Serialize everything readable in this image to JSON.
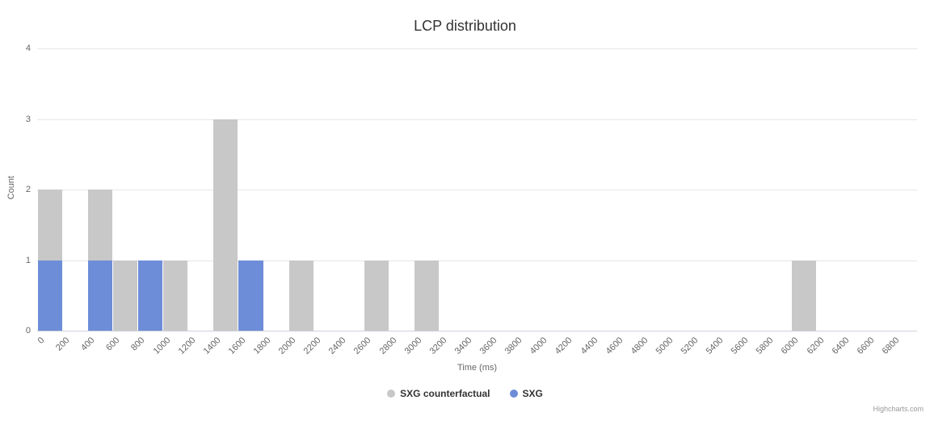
{
  "credit": "Highcharts.com",
  "chart_data": {
    "type": "bar",
    "title": "LCP distribution",
    "xlabel": "Time (ms)",
    "ylabel": "Count",
    "ylim": [
      0,
      4
    ],
    "yticks": [
      0,
      1,
      2,
      3,
      4
    ],
    "x_bin_size_ms": 200,
    "grid": true,
    "legend_position": "bottom",
    "categories": [
      "0",
      "200",
      "400",
      "600",
      "800",
      "1000",
      "1200",
      "1400",
      "1600",
      "1800",
      "2000",
      "2200",
      "2400",
      "2600",
      "2800",
      "3000",
      "3200",
      "3400",
      "3600",
      "3800",
      "4000",
      "4200",
      "4400",
      "4600",
      "4800",
      "5000",
      "5200",
      "5400",
      "5600",
      "5800",
      "6000",
      "6200",
      "6400",
      "6600",
      "6800"
    ],
    "series": [
      {
        "name": "SXG counterfactual",
        "color": "#c8c8c8",
        "values": [
          2,
          0,
          2,
          1,
          0,
          1,
          0,
          3,
          0,
          0,
          1,
          0,
          0,
          1,
          0,
          1,
          0,
          0,
          0,
          0,
          0,
          0,
          0,
          0,
          0,
          0,
          0,
          0,
          0,
          0,
          1,
          0,
          0,
          0,
          0
        ]
      },
      {
        "name": "SXG",
        "color": "#6e8dd8",
        "values": [
          1,
          0,
          1,
          0,
          1,
          0,
          0,
          0,
          1,
          0,
          0,
          0,
          0,
          0,
          0,
          0,
          0,
          0,
          0,
          0,
          0,
          0,
          0,
          0,
          0,
          0,
          0,
          0,
          0,
          0,
          0,
          0,
          0,
          0,
          0
        ]
      }
    ]
  }
}
